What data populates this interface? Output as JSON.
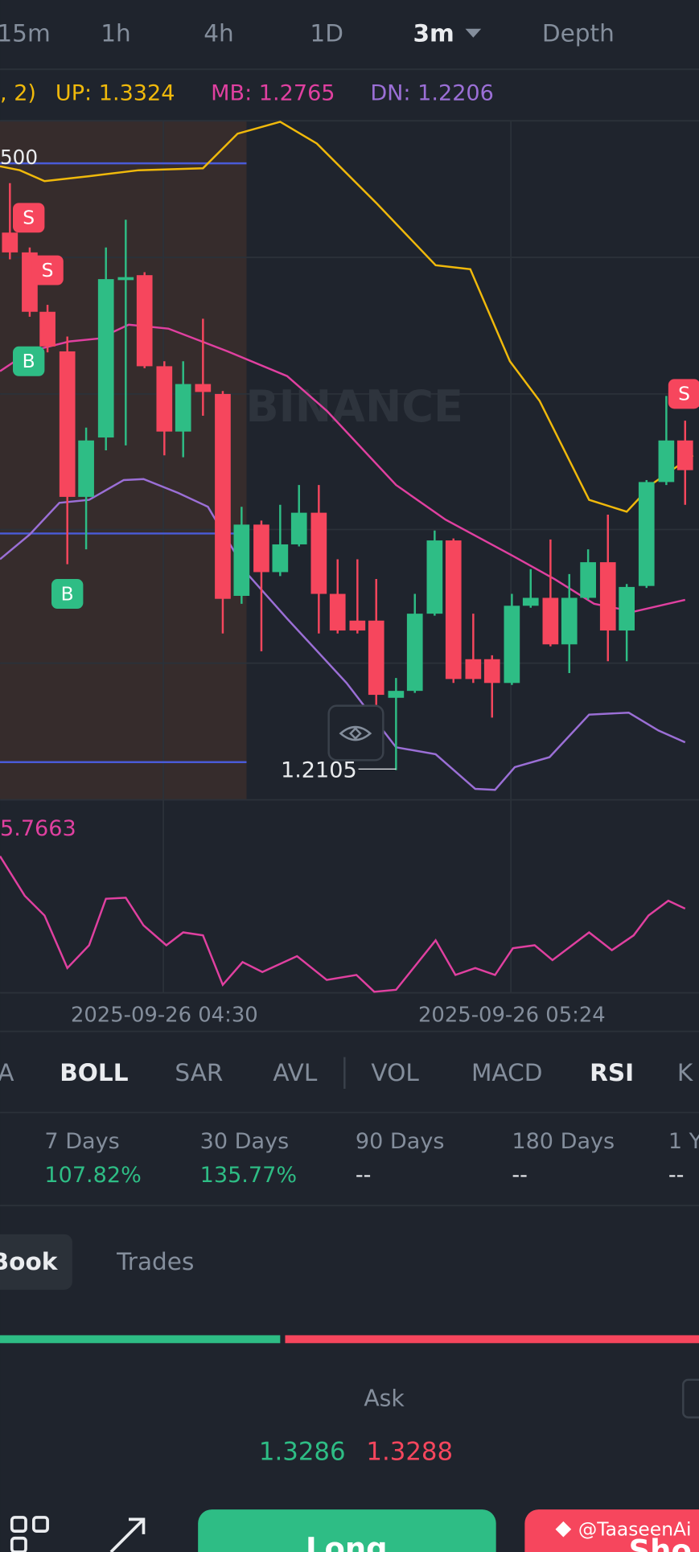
{
  "tabs": [
    "15m",
    "1h",
    "4h",
    "1D",
    "3m",
    "Depth"
  ],
  "indicator": {
    "params": ", 2)",
    "up": "UP: 1.3324",
    "mb": "MB: 1.2765",
    "dn": "DN: 1.2206"
  },
  "chart": {
    "level_label": "500",
    "watermark": "BINANCE",
    "markers": [
      "S",
      "S",
      "B",
      "B",
      "S"
    ],
    "low_label": "1.2105"
  },
  "rsi": {
    "label": "5.7663"
  },
  "time_labels": [
    "2025-09-26 04:30",
    "2025-09-26 05:24"
  ],
  "indicator_tabs": [
    "A",
    "BOLL",
    "SAR",
    "AVL",
    "VOL",
    "MACD",
    "RSI",
    "K"
  ],
  "returns": [
    {
      "period": "7 Days",
      "value": "107.82%"
    },
    {
      "period": "30 Days",
      "value": "135.77%"
    },
    {
      "period": "90 Days",
      "value": "--"
    },
    {
      "period": "180 Days",
      "value": "--"
    },
    {
      "period": "1 Y",
      "value": "--"
    }
  ],
  "book_tabs": [
    "Book",
    "Trades"
  ],
  "ask": {
    "label": "Ask",
    "bid_price": "1.3286",
    "ask_price": "1.3288"
  },
  "buttons": {
    "long": "Long",
    "short": "Sho"
  },
  "credit": "@TaaseenAi"
}
